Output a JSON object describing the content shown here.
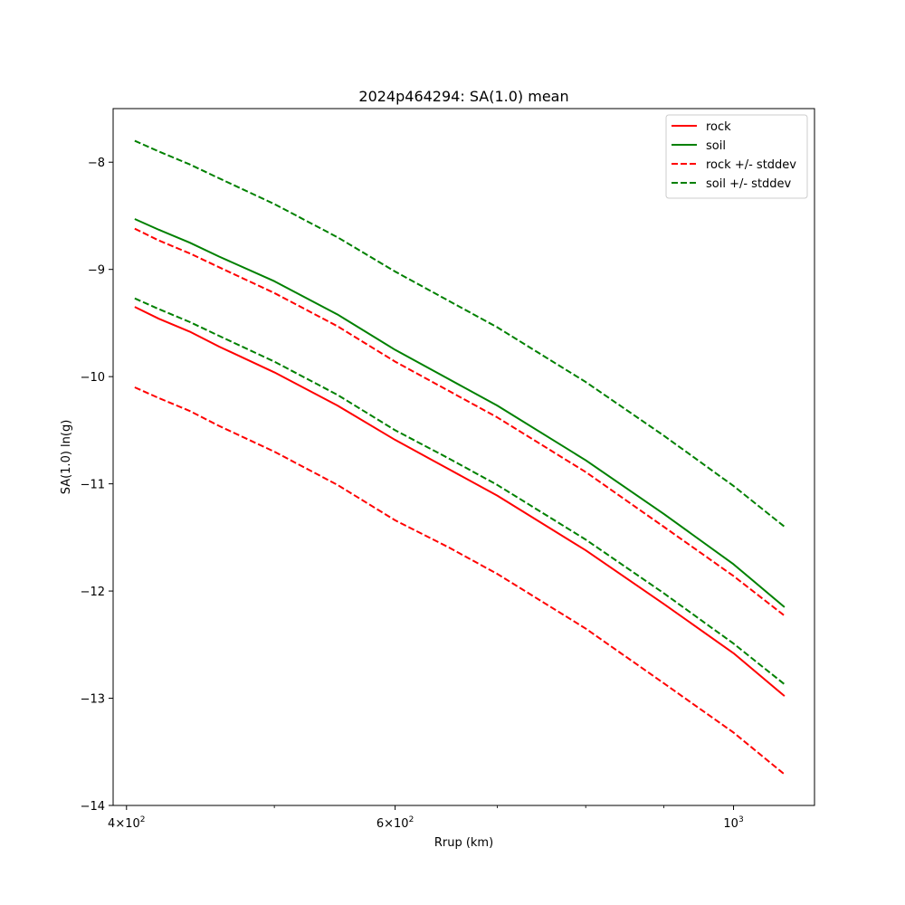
{
  "chart_data": {
    "type": "line",
    "title": "2024p464294: SA(1.0) mean",
    "xlabel": "Rrup (km)",
    "ylabel": "SA(1.0) ln(g)",
    "xscale": "log",
    "xlim": [
      392,
      1130
    ],
    "ylim": [
      -14.0,
      -7.5
    ],
    "x_ticks": [
      {
        "value": 400,
        "mantissa": "4",
        "exponent": "2"
      },
      {
        "value": 600,
        "mantissa": "6",
        "exponent": "2"
      },
      {
        "value": 1000,
        "mantissa": "",
        "exponent": "3"
      }
    ],
    "y_ticks": [
      -8,
      -9,
      -10,
      -11,
      -12,
      -13,
      -14
    ],
    "legend_position": "top-right",
    "grid": false,
    "x": [
      405,
      420,
      440,
      460,
      500,
      550,
      600,
      650,
      700,
      800,
      900,
      1000,
      1080
    ],
    "series": [
      {
        "name": "rock",
        "style": "solid",
        "color": "#ff0000",
        "values": [
          -9.35,
          -9.46,
          -9.58,
          -9.72,
          -9.96,
          -10.27,
          -10.59,
          -10.86,
          -11.11,
          -11.62,
          -12.12,
          -12.58,
          -12.98
        ]
      },
      {
        "name": "soil",
        "style": "solid",
        "color": "#008000",
        "values": [
          -8.53,
          -8.63,
          -8.75,
          -8.88,
          -9.11,
          -9.42,
          -9.75,
          -10.02,
          -10.27,
          -10.78,
          -11.28,
          -11.75,
          -12.15
        ]
      },
      {
        "name": "rock +/- stddev",
        "style": "dashed",
        "color": "#ff0000",
        "values": [
          -8.62,
          -8.73,
          -8.85,
          -8.98,
          -9.22,
          -9.53,
          -9.86,
          -10.13,
          -10.38,
          -10.89,
          -11.4,
          -11.86,
          -12.23
        ]
      },
      {
        "name": "",
        "style": "dashed",
        "color": "#ff0000",
        "values": [
          -10.1,
          -10.2,
          -10.32,
          -10.46,
          -10.7,
          -11.01,
          -11.34,
          -11.59,
          -11.84,
          -12.35,
          -12.86,
          -13.32,
          -13.71
        ]
      },
      {
        "name": "soil +/- stddev",
        "style": "dashed",
        "color": "#008000",
        "values": [
          -7.8,
          -7.9,
          -8.02,
          -8.15,
          -8.39,
          -8.7,
          -9.02,
          -9.29,
          -9.54,
          -10.05,
          -10.55,
          -11.02,
          -11.4
        ]
      },
      {
        "name": "",
        "style": "dashed",
        "color": "#008000",
        "values": [
          -9.27,
          -9.37,
          -9.49,
          -9.62,
          -9.86,
          -10.17,
          -10.5,
          -10.76,
          -11.01,
          -11.52,
          -12.02,
          -12.49,
          -12.87
        ]
      }
    ],
    "legend": [
      {
        "label": "rock",
        "color": "#ff0000",
        "style": "solid"
      },
      {
        "label": "soil",
        "color": "#008000",
        "style": "solid"
      },
      {
        "label": "rock +/- stddev",
        "color": "#ff0000",
        "style": "dashed"
      },
      {
        "label": "soil +/- stddev",
        "color": "#008000",
        "style": "dashed"
      }
    ]
  }
}
